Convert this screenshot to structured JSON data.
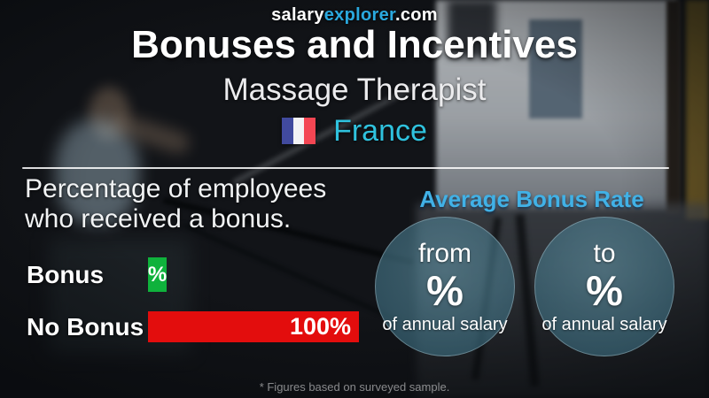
{
  "brand": {
    "salary": "salary",
    "explorer": "explorer",
    "tld": ".com"
  },
  "header": {
    "title": "Bonuses and Incentives",
    "subtitle": "Massage Therapist",
    "country": "France"
  },
  "section_left": {
    "line1": "Percentage of employees",
    "line2": "who received a bonus."
  },
  "right_panel": {
    "title": "Average Bonus Rate",
    "circles": [
      {
        "prefix": "from",
        "value": "%",
        "suffix": "of annual salary"
      },
      {
        "prefix": "to",
        "value": "%",
        "suffix": "of annual salary"
      }
    ]
  },
  "footer": {
    "note": "* Figures based on surveyed sample."
  },
  "colors": {
    "explorer_blue": "#2aa9df",
    "country_cyan": "#2fc2de",
    "avg_title_blue": "#41b1e6",
    "bonus_green": "#0fb23c",
    "nobonus_red": "#e30d0d",
    "flag_blue": "#414a9e",
    "flag_red": "#f44653",
    "circle_teal": "rgba(62,118,138,0.6)"
  },
  "chart_data": [
    {
      "type": "bar",
      "orientation": "horizontal",
      "title": "Percentage of employees who received a bonus.",
      "categories": [
        "Bonus",
        "No Bonus"
      ],
      "values": [
        0,
        100
      ],
      "value_labels": [
        "%",
        "100%"
      ],
      "colors": [
        "#0fb23c",
        "#e30d0d"
      ],
      "xlim": [
        0,
        100
      ],
      "grid": false,
      "legend": false
    },
    {
      "type": "table",
      "title": "Average Bonus Rate",
      "columns": [
        "qualifier",
        "value",
        "unit"
      ],
      "rows": [
        [
          "from",
          "%",
          "of annual salary"
        ],
        [
          "to",
          "%",
          "of annual salary"
        ]
      ]
    }
  ]
}
